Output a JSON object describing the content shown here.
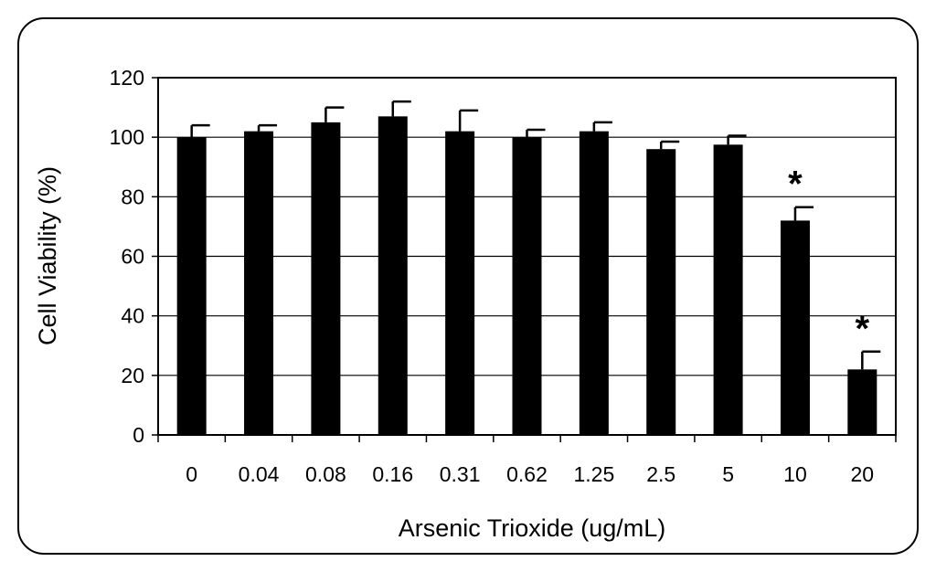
{
  "chart_data": {
    "type": "bar",
    "title": "",
    "xlabel": "Arsenic Trioxide (ug/mL)",
    "ylabel": "Cell Viability (%)",
    "ylim": [
      0,
      120
    ],
    "yticks": [
      "0",
      "20",
      "40",
      "60",
      "80",
      "100",
      "120"
    ],
    "grid": true,
    "categories": [
      "0",
      "0.04",
      "0.08",
      "0.16",
      "0.31",
      "0.62",
      "1.25",
      "2.5",
      "5",
      "10",
      "20"
    ],
    "values": [
      100,
      102,
      105,
      107,
      102,
      100,
      102,
      96,
      97.5,
      72,
      22
    ],
    "errors": [
      4,
      2,
      5,
      5,
      7,
      2.5,
      3,
      2.5,
      3,
      4.5,
      6
    ],
    "annotations": [
      "",
      "",
      "",
      "",
      "",
      "",
      "",
      "",
      "",
      "*",
      "*"
    ],
    "colors": {
      "bar": "#000000",
      "background": "#ffffff"
    }
  }
}
